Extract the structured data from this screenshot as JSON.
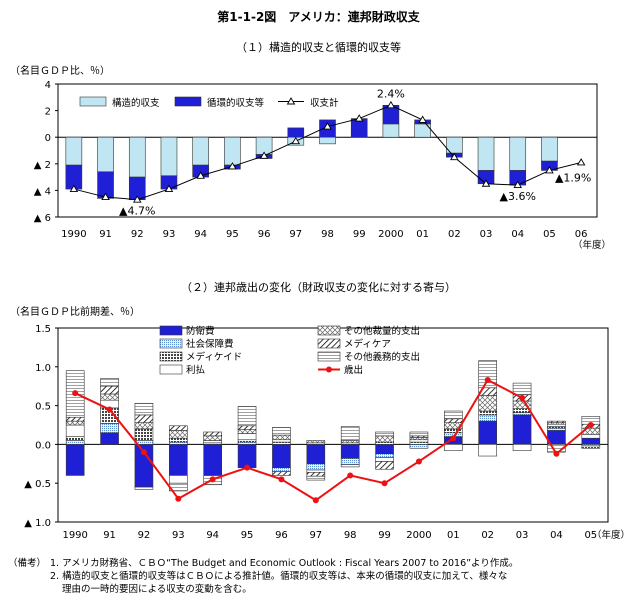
{
  "page": {
    "title": "第1-1-2図　アメリカ：連邦財政収支",
    "notes_head": "（備考）",
    "notes": [
      "1. アメリカ財務省、ＣＢＯ“The Budget and Economic Outlook : Fiscal Years 2007 to 2016”より作成。",
      "2. 構造的収支と循環的収支等はＣＢＯによる推計値。循環的収支等は、本来の循環的収支に加えて、様々な",
      "理由の一時的要因による収支の変動を含む。"
    ]
  },
  "colors": {
    "structural": "#bfe6f2",
    "cyclical": "#1f1fd6",
    "defense": "#1f1fd6",
    "social_security": "#a9c9ec",
    "medicaid": "#5a5a5a",
    "interest": "#ffffff",
    "other_discretionary": "#dddddd",
    "medicare": "#ffffff",
    "other_mandatory": "#eeeeee",
    "outlays_line": "#ee1111",
    "total_line": "#000000"
  },
  "chart_data": [
    {
      "type": "bar",
      "title": "（１）構造的収支と循環的収支等",
      "ylabel": "（名目ＧＤＰ比、％）",
      "xunit": "（年度）",
      "ylim": [
        -6,
        4
      ],
      "yticks": [
        4,
        2,
        0,
        -2,
        -4,
        -6
      ],
      "ytick_labels": [
        "4",
        "2",
        "0",
        "▲ 2",
        "▲ 4",
        "▲ 6"
      ],
      "categories": [
        "1990",
        "91",
        "92",
        "93",
        "94",
        "95",
        "96",
        "97",
        "98",
        "99",
        "2000",
        "01",
        "02",
        "03",
        "04",
        "05",
        "06"
      ],
      "series": [
        {
          "name": "構造的収支",
          "kind": "bar",
          "values": [
            -2.1,
            -2.6,
            -3.0,
            -2.9,
            -2.1,
            -2.1,
            -1.3,
            -0.6,
            -0.5,
            0.0,
            1.0,
            1.0,
            -1.2,
            -2.5,
            -2.5,
            -1.8,
            null
          ]
        },
        {
          "name": "循環的収支等",
          "kind": "bar",
          "values": [
            -1.8,
            -2.0,
            -1.7,
            -1.0,
            -0.9,
            -0.3,
            -0.3,
            0.7,
            1.3,
            1.4,
            1.4,
            0.3,
            -0.3,
            -1.0,
            -1.1,
            -0.7,
            null
          ]
        },
        {
          "name": "収支計",
          "kind": "line",
          "values": [
            -3.9,
            -4.5,
            -4.7,
            -3.9,
            -2.9,
            -2.2,
            -1.4,
            -0.3,
            0.8,
            1.4,
            2.4,
            1.3,
            -1.5,
            -3.5,
            -3.6,
            -2.5,
            -1.9
          ]
        }
      ],
      "annotations": [
        {
          "text": "2.4%",
          "category": "2000",
          "value": 2.4
        },
        {
          "text": "▲4.7%",
          "category": "92",
          "value": -4.7
        },
        {
          "text": "▲3.6%",
          "category": "04",
          "value": -3.6
        },
        {
          "text": "▲1.9%",
          "category": "06",
          "value": -1.9
        }
      ],
      "legend_position": "top-left",
      "grid": false
    },
    {
      "type": "bar",
      "title": "（２）連邦歳出の変化（財政収支の変化に対する寄与）",
      "ylabel": "（名目ＧＤＰ比前期差、％）",
      "xunit": "（年度）",
      "ylim": [
        -1.0,
        1.5
      ],
      "yticks": [
        1.5,
        1.0,
        0.5,
        0.0,
        -0.5,
        -1.0
      ],
      "ytick_labels": [
        "1.5",
        "1.0",
        "0.5",
        "0.0",
        "▲ 0.5",
        "▲ 1.0"
      ],
      "categories": [
        "1990",
        "91",
        "92",
        "93",
        "94",
        "95",
        "96",
        "97",
        "98",
        "99",
        "2000",
        "01",
        "02",
        "03",
        "04",
        "05"
      ],
      "series": [
        {
          "name": "防衛費",
          "kind": "bar",
          "values": [
            -0.4,
            0.15,
            -0.55,
            -0.4,
            -0.4,
            -0.3,
            -0.3,
            -0.25,
            -0.18,
            -0.12,
            0.0,
            0.1,
            0.3,
            0.38,
            0.18,
            0.08
          ]
        },
        {
          "name": "社会保障費",
          "kind": "bar",
          "values": [
            0.05,
            0.12,
            0.05,
            0.03,
            0.0,
            0.03,
            -0.05,
            -0.08,
            -0.08,
            -0.05,
            -0.05,
            0.05,
            0.08,
            0.03,
            0.03,
            -0.02
          ]
        },
        {
          "name": "メディケイド",
          "kind": "bar",
          "values": [
            0.05,
            0.2,
            0.15,
            0.05,
            0.02,
            0.03,
            0.03,
            0.02,
            0.02,
            0.03,
            0.03,
            0.05,
            0.05,
            0.05,
            0.02,
            -0.03
          ]
        },
        {
          "name": "利払",
          "kind": "bar",
          "values": [
            0.15,
            0.1,
            -0.03,
            -0.1,
            0.03,
            0.08,
            0.03,
            -0.03,
            -0.03,
            -0.05,
            0.03,
            -0.08,
            -0.15,
            -0.08,
            0.03,
            0.05
          ]
        },
        {
          "name": "その他裁量的支出",
          "kind": "bar",
          "values": [
            0.05,
            0.08,
            0.08,
            0.1,
            0.06,
            0.05,
            0.06,
            0.03,
            0.03,
            0.08,
            0.03,
            0.08,
            0.2,
            0.1,
            0.02,
            0.08
          ]
        },
        {
          "name": "メディケア",
          "kind": "bar",
          "values": [
            0.05,
            0.1,
            0.1,
            0.06,
            0.05,
            0.05,
            -0.05,
            -0.05,
            0.0,
            -0.1,
            0.02,
            0.05,
            0.1,
            0.08,
            0.02,
            0.05
          ]
        },
        {
          "name": "その他義務的支出",
          "kind": "bar",
          "values": [
            0.6,
            0.1,
            0.15,
            -0.1,
            -0.12,
            0.25,
            0.1,
            -0.05,
            0.18,
            0.05,
            0.05,
            0.1,
            0.35,
            0.15,
            -0.1,
            0.1
          ]
        },
        {
          "name": "歳出",
          "kind": "line",
          "values": [
            0.66,
            0.45,
            -0.1,
            -0.7,
            -0.45,
            -0.3,
            -0.45,
            -0.72,
            -0.4,
            -0.5,
            -0.22,
            0.08,
            0.83,
            0.6,
            -0.12,
            0.25
          ]
        }
      ],
      "legend_position": "top-center",
      "grid": false
    }
  ]
}
